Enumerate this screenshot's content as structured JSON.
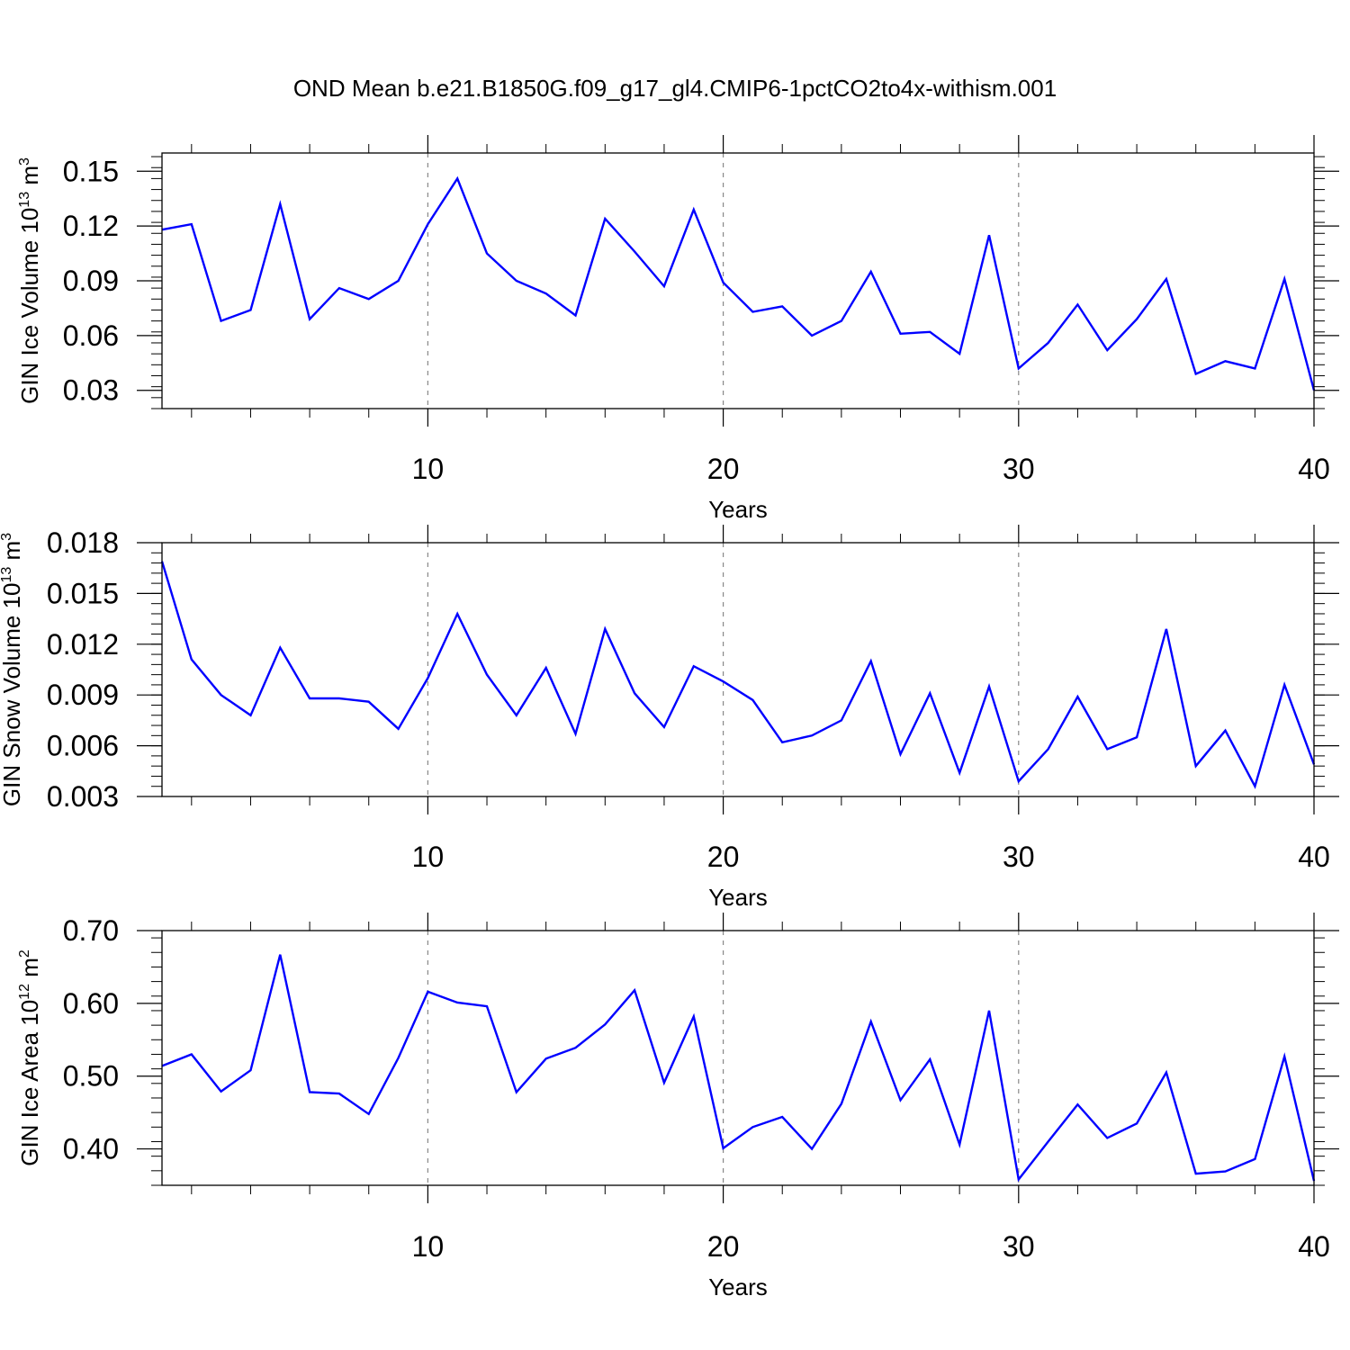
{
  "figure_title": "OND Mean b.e21.B1850G.f09_g17_gl4.CMIP6-1pctCO2to4x-withism.001",
  "colors": {
    "line": "#0000ff",
    "axis": "#000000",
    "grid": "#888888",
    "background": "#ffffff"
  },
  "chart_data": [
    {
      "type": "line",
      "ylabel": {
        "text": "GIN Ice Volume 10",
        "exp": "13",
        "unit": " m",
        "unit_exp": "3"
      },
      "xlabel": "Years",
      "xlim": [
        1,
        40
      ],
      "ylim": [
        0.02,
        0.16
      ],
      "xticks": [
        10,
        20,
        30,
        40
      ],
      "yticks": [
        0.03,
        0.06,
        0.09,
        0.12,
        0.15
      ],
      "ytick_labels": [
        "0.03",
        "0.06",
        "0.09",
        "0.12",
        "0.15"
      ],
      "vertical_gridlines": [
        10,
        20,
        30
      ],
      "series": [
        {
          "x": [
            1,
            2,
            3,
            4,
            5,
            6,
            7,
            8,
            9,
            10,
            11,
            12,
            13,
            14,
            15,
            16,
            17,
            18,
            19,
            20,
            21,
            22,
            23,
            24,
            25,
            26,
            27,
            28,
            29,
            30,
            31,
            32,
            33,
            34,
            35,
            36,
            37,
            38,
            39,
            40
          ],
          "values": [
            0.118,
            0.121,
            0.068,
            0.074,
            0.132,
            0.069,
            0.086,
            0.08,
            0.09,
            0.121,
            0.146,
            0.105,
            0.09,
            0.083,
            0.071,
            0.124,
            0.106,
            0.087,
            0.129,
            0.089,
            0.073,
            0.076,
            0.06,
            0.068,
            0.095,
            0.061,
            0.062,
            0.05,
            0.115,
            0.042,
            0.056,
            0.077,
            0.052,
            0.069,
            0.091,
            0.039,
            0.046,
            0.042,
            0.091,
            0.03
          ]
        }
      ]
    },
    {
      "type": "line",
      "ylabel": {
        "text": "GIN Snow Volume 10",
        "exp": "13",
        "unit": " m",
        "unit_exp": "3"
      },
      "xlabel": "Years",
      "xlim": [
        1,
        40
      ],
      "ylim": [
        0.003,
        0.018
      ],
      "xticks": [
        10,
        20,
        30,
        40
      ],
      "yticks": [
        0.003,
        0.006,
        0.009,
        0.012,
        0.015,
        0.018
      ],
      "ytick_labels": [
        "0.003",
        "0.006",
        "0.009",
        "0.012",
        "0.015",
        "0.018"
      ],
      "vertical_gridlines": [
        10,
        20,
        30
      ],
      "series": [
        {
          "x": [
            1,
            2,
            3,
            4,
            5,
            6,
            7,
            8,
            9,
            10,
            11,
            12,
            13,
            14,
            15,
            16,
            17,
            18,
            19,
            20,
            21,
            22,
            23,
            24,
            25,
            26,
            27,
            28,
            29,
            30,
            31,
            32,
            33,
            34,
            35,
            36,
            37,
            38,
            39,
            40
          ],
          "values": [
            0.0169,
            0.0111,
            0.009,
            0.0078,
            0.0118,
            0.0088,
            0.0088,
            0.0086,
            0.007,
            0.01,
            0.0138,
            0.0102,
            0.0078,
            0.0106,
            0.0067,
            0.0129,
            0.0091,
            0.0071,
            0.0107,
            0.0098,
            0.0087,
            0.0062,
            0.0066,
            0.0075,
            0.011,
            0.0055,
            0.0091,
            0.0044,
            0.0095,
            0.0039,
            0.0058,
            0.0089,
            0.0058,
            0.0065,
            0.0129,
            0.0048,
            0.0069,
            0.0036,
            0.0096,
            0.0049
          ]
        }
      ]
    },
    {
      "type": "line",
      "ylabel": {
        "text": "GIN Ice Area 10",
        "exp": "12",
        "unit": " m",
        "unit_exp": "2"
      },
      "xlabel": "Years",
      "xlim": [
        1,
        40
      ],
      "ylim": [
        0.35,
        0.7
      ],
      "xticks": [
        10,
        20,
        30,
        40
      ],
      "yticks": [
        0.4,
        0.5,
        0.6,
        0.7
      ],
      "ytick_labels": [
        "0.40",
        "0.50",
        "0.60",
        "0.70"
      ],
      "vertical_gridlines": [
        10,
        20,
        30
      ],
      "series": [
        {
          "x": [
            1,
            2,
            3,
            4,
            5,
            6,
            7,
            8,
            9,
            10,
            11,
            12,
            13,
            14,
            15,
            16,
            17,
            18,
            19,
            20,
            21,
            22,
            23,
            24,
            25,
            26,
            27,
            28,
            29,
            30,
            31,
            32,
            33,
            34,
            35,
            36,
            37,
            38,
            39,
            40
          ],
          "values": [
            0.514,
            0.53,
            0.479,
            0.508,
            0.667,
            0.478,
            0.476,
            0.448,
            0.525,
            0.616,
            0.601,
            0.596,
            0.478,
            0.524,
            0.539,
            0.571,
            0.618,
            0.491,
            0.582,
            0.401,
            0.43,
            0.444,
            0.4,
            0.462,
            0.575,
            0.467,
            0.523,
            0.406,
            0.59,
            0.358,
            0.41,
            0.461,
            0.415,
            0.435,
            0.505,
            0.366,
            0.369,
            0.386,
            0.527,
            0.356
          ]
        }
      ]
    }
  ]
}
